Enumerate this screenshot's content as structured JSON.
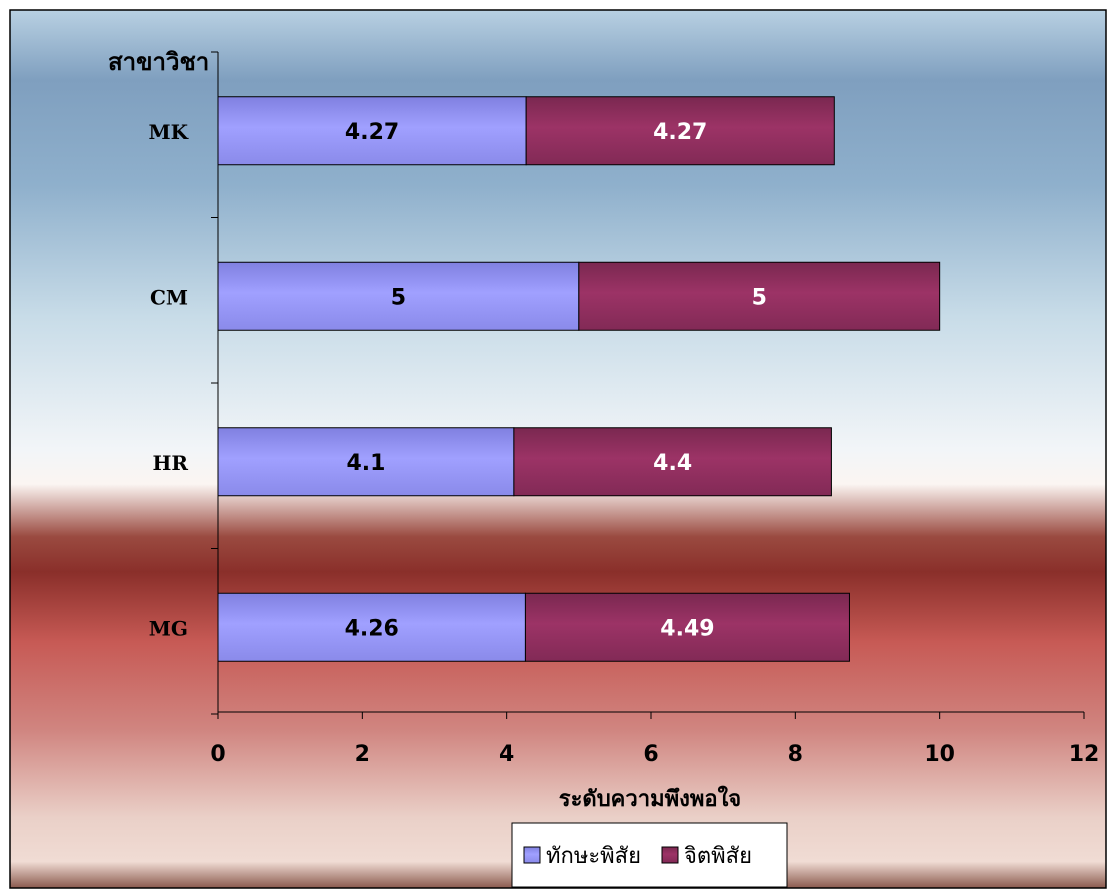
{
  "chart_data": {
    "type": "bar",
    "orientation": "horizontal",
    "stacked": true,
    "title": "",
    "ylabel": "สาขาวิชา",
    "xlabel": "ระดับความพึงพอใจ",
    "categories": [
      "MK",
      "CM",
      "HR",
      "MG"
    ],
    "series": [
      {
        "name": "ทักษะพิสัย",
        "values": [
          4.27,
          5,
          4.1,
          4.26
        ],
        "color": "#9999ff"
      },
      {
        "name": "จิตพิสัย",
        "values": [
          4.27,
          5,
          4.4,
          4.49
        ],
        "color": "#993366"
      }
    ],
    "xlim": [
      0,
      12
    ],
    "xticks": [
      "0",
      "2",
      "4",
      "6",
      "8",
      "10",
      "12"
    ],
    "data_labels": true,
    "grid": false,
    "legend_position": "bottom"
  }
}
